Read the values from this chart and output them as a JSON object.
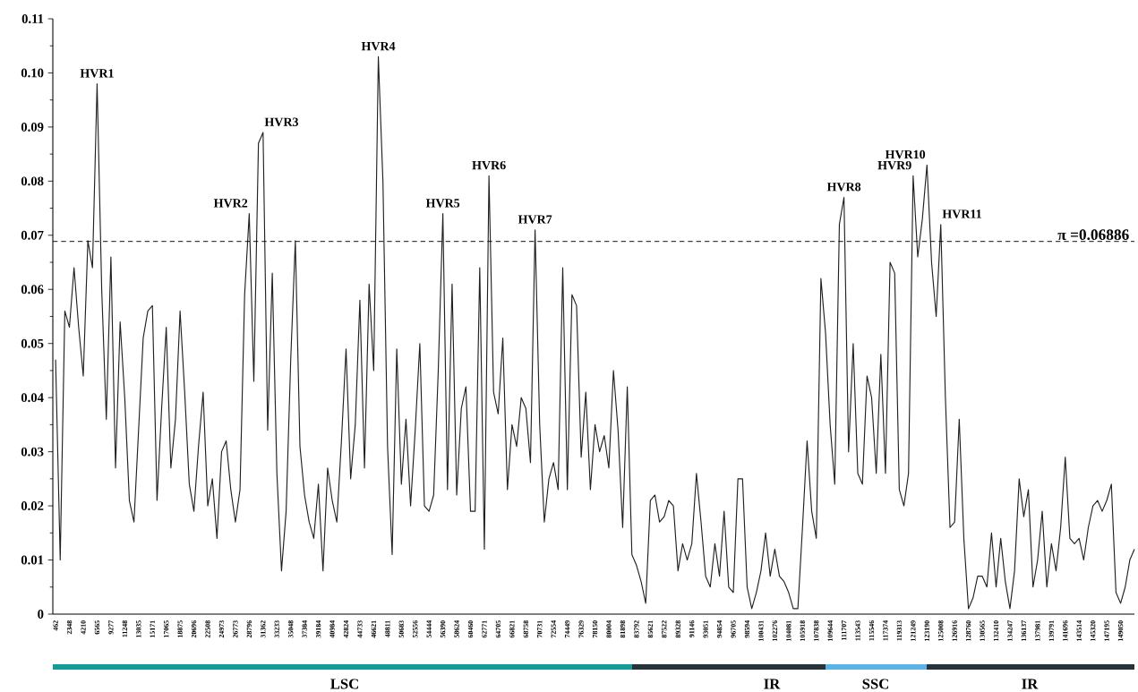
{
  "chart_data": {
    "type": "line",
    "categories": [
      "462",
      null,
      null,
      "2348",
      null,
      null,
      "4210",
      null,
      null,
      "6565",
      null,
      null,
      "9277",
      null,
      null,
      "11248",
      null,
      null,
      "13035",
      null,
      null,
      "15171",
      null,
      null,
      "17065",
      null,
      null,
      "18875",
      null,
      null,
      "20696",
      null,
      null,
      "22508",
      null,
      null,
      "24973",
      null,
      null,
      "26773",
      null,
      null,
      "28796",
      null,
      null,
      "31362",
      null,
      null,
      "33233",
      null,
      null,
      "35048",
      null,
      null,
      "37384",
      null,
      null,
      "39184",
      null,
      null,
      "40984",
      null,
      null,
      "42824",
      null,
      null,
      "44733",
      null,
      null,
      "46621",
      null,
      null,
      "48811",
      null,
      null,
      "50683",
      null,
      null,
      "52556",
      null,
      null,
      "54444",
      null,
      null,
      "56390",
      null,
      null,
      "58624",
      null,
      null,
      "60460",
      null,
      null,
      "62771",
      null,
      null,
      "64705",
      null,
      null,
      "66821",
      null,
      null,
      "68758",
      null,
      null,
      "70731",
      null,
      null,
      "72554",
      null,
      null,
      "74449",
      null,
      null,
      "76329",
      null,
      null,
      "78150",
      null,
      null,
      "80004",
      null,
      null,
      "81898",
      null,
      null,
      "83792",
      null,
      null,
      "85621",
      null,
      null,
      "87522",
      null,
      null,
      "89328",
      null,
      null,
      "91146",
      null,
      null,
      "93051",
      null,
      null,
      "94854",
      null,
      null,
      "96705",
      null,
      null,
      "98594",
      null,
      null,
      "100431",
      null,
      null,
      "102276",
      null,
      null,
      "104081",
      null,
      null,
      "105918",
      null,
      null,
      "107838",
      null,
      null,
      "109644",
      null,
      null,
      "111707",
      null,
      null,
      "113543",
      null,
      null,
      "115546",
      null,
      null,
      "117374",
      null,
      null,
      "119313",
      null,
      null,
      "121249",
      null,
      null,
      "123190",
      null,
      null,
      "125008",
      null,
      null,
      "126916",
      null,
      null,
      "128760",
      null,
      null,
      "130565",
      null,
      null,
      "132410",
      null,
      null,
      "134247",
      null,
      null,
      "136137",
      null,
      null,
      "137981",
      null,
      null,
      "139791",
      null,
      null,
      "141696",
      null,
      null,
      "143514",
      null,
      null,
      "145320",
      null,
      null,
      "147195",
      null,
      null,
      "149050",
      null,
      null,
      null
    ],
    "values": [
      0.047,
      0.01,
      0.056,
      0.053,
      0.064,
      0.053,
      0.044,
      0.069,
      0.064,
      0.098,
      0.06,
      0.036,
      0.066,
      0.027,
      0.054,
      0.04,
      0.021,
      0.017,
      0.034,
      0.051,
      0.056,
      0.057,
      0.021,
      0.038,
      0.053,
      0.027,
      0.036,
      0.056,
      0.041,
      0.024,
      0.019,
      0.031,
      0.041,
      0.02,
      0.025,
      0.014,
      0.03,
      0.032,
      0.023,
      0.017,
      0.023,
      0.059,
      0.074,
      0.043,
      0.087,
      0.089,
      0.034,
      0.063,
      0.026,
      0.008,
      0.019,
      0.047,
      0.069,
      0.031,
      0.022,
      0.017,
      0.014,
      0.024,
      0.008,
      0.027,
      0.021,
      0.017,
      0.032,
      0.049,
      0.025,
      0.035,
      0.058,
      0.027,
      0.061,
      0.045,
      0.103,
      0.08,
      0.031,
      0.011,
      0.049,
      0.024,
      0.036,
      0.02,
      0.034,
      0.05,
      0.02,
      0.019,
      0.022,
      0.045,
      0.074,
      0.023,
      0.061,
      0.022,
      0.038,
      0.042,
      0.019,
      0.019,
      0.064,
      0.012,
      0.081,
      0.041,
      0.037,
      0.051,
      0.023,
      0.035,
      0.031,
      0.04,
      0.038,
      0.028,
      0.071,
      0.035,
      0.017,
      0.025,
      0.028,
      0.023,
      0.064,
      0.023,
      0.059,
      0.057,
      0.029,
      0.041,
      0.023,
      0.035,
      0.03,
      0.033,
      0.027,
      0.045,
      0.034,
      0.016,
      0.042,
      0.011,
      0.009,
      0.006,
      0.002,
      0.021,
      0.022,
      0.017,
      0.018,
      0.021,
      0.02,
      0.008,
      0.013,
      0.01,
      0.013,
      0.026,
      0.017,
      0.007,
      0.005,
      0.013,
      0.007,
      0.019,
      0.005,
      0.004,
      0.025,
      0.025,
      0.005,
      0.001,
      0.004,
      0.008,
      0.015,
      0.007,
      0.012,
      0.007,
      0.006,
      0.004,
      0.001,
      0.001,
      0.016,
      0.032,
      0.019,
      0.014,
      0.062,
      0.052,
      0.035,
      0.024,
      0.072,
      0.077,
      0.03,
      0.05,
      0.026,
      0.024,
      0.044,
      0.04,
      0.026,
      0.048,
      0.026,
      0.065,
      0.063,
      0.023,
      0.02,
      0.026,
      0.081,
      0.066,
      0.073,
      0.083,
      0.065,
      0.055,
      0.072,
      0.04,
      0.016,
      0.017,
      0.036,
      0.014,
      0.001,
      0.003,
      0.007,
      0.007,
      0.005,
      0.015,
      0.005,
      0.014,
      0.006,
      0.001,
      0.008,
      0.025,
      0.018,
      0.023,
      0.005,
      0.01,
      0.019,
      0.005,
      0.013,
      0.008,
      0.016,
      0.029,
      0.014,
      0.013,
      0.014,
      0.01,
      0.016,
      0.02,
      0.021,
      0.019,
      0.021,
      0.024,
      0.004,
      0.002,
      0.005,
      0.01,
      0.012
    ],
    "color": "#231f20",
    "ylim": [
      0,
      0.11
    ],
    "yticks": [
      0,
      0.01,
      0.02,
      0.03,
      0.04,
      0.05,
      0.06,
      0.07,
      0.08,
      0.09,
      {
        "value": 0.1,
        "label": "0.10"
      },
      0.11
    ],
    "ref_lines": [
      {
        "axis": "y",
        "value": 0.06886,
        "label": "π =0.06886",
        "line_style": "dashed"
      }
    ],
    "annotations": [
      {
        "text": "HVR1",
        "x": "6565",
        "y": 0.098
      },
      {
        "text": "HVR2",
        "x": "28796",
        "y": 0.074
      },
      {
        "text": "HVR3",
        "x": "31362",
        "y": 0.089
      },
      {
        "text": "HVR4",
        "y": 0.103
      },
      {
        "text": "HVR5",
        "x": "56390",
        "y": 0.074
      },
      {
        "text": "HVR6",
        "y": 0.081
      },
      {
        "text": "HVR7",
        "y": 0.071
      },
      {
        "text": "HVR8",
        "x": "111707",
        "y": 0.077
      },
      {
        "text": "HVR9",
        "x": "121249",
        "y": 0.081
      },
      {
        "text": "HVR10",
        "x": "123190",
        "y": 0.083
      },
      {
        "text": "HVR11",
        "x": "125008",
        "y": 0.072
      },
      "LSC",
      "IR",
      "SSC",
      "IR"
    ]
  }
}
